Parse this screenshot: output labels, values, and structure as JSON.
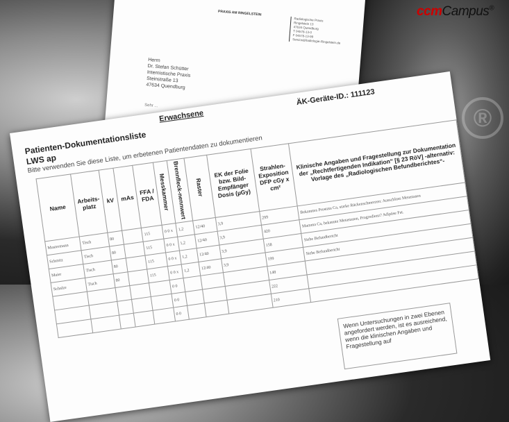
{
  "logo": {
    "text_a": "ccm",
    "text_b": "Campus",
    "reg": "®"
  },
  "watermark": "®",
  "letter": {
    "header": "PRAXIS AM RINGELSTEIN",
    "sender": [
      "Radiologische Praxis",
      "Ringelstein 13",
      "47634 Quendburg",
      "",
      "T 04578-13-0",
      "F 04578-13-99",
      "Service&Radiologie-Ringelstein.de"
    ],
    "recipient": [
      "Herrn",
      "Dr. Stefan Schütter",
      "Internistische Praxis",
      "Steinstraße 13",
      "47634 Quendburg"
    ],
    "greeting": "Sehr ..."
  },
  "sheet": {
    "category": "Erwachsene",
    "title": "Patienten-Dokumentationsliste",
    "subtitle": "LWS ap",
    "hint": "Bitte verwenden Sie diese Liste, um erbetenen Patientendaten zu dokumentieren",
    "device_id": "ÄK-Geräte-ID.: 111123",
    "columns": [
      "Name",
      "Arbeits-platz",
      "kV",
      "mAs",
      "FFA / FDA",
      "Messkammer",
      "Brennfleck-nennwert",
      "Raster",
      "EK der Folie bzw. Bild-Empfänger Dosis (µGy)",
      "Strahlen-Exposition DFP cGy x cm²",
      "Klinische Angaben und Fragestellung zur Dokumentation der „Rechtfertigenden Indikation“ [§ 23 RöV] -alternativ: Vorlage des „Radiologischen Befundberichtes“-"
    ],
    "rows": [
      [
        "Mustermann",
        "Tisch",
        "80",
        "",
        "115",
        "0 0 x",
        "1,2",
        "12/40",
        "3,9",
        "299",
        "Bekanntes Prostata Ca, starke Rückenschmerzen: Ausschluss Metastasen"
      ],
      [
        "Schmitz",
        "Tisch",
        "80",
        "",
        "115",
        "0 0 x",
        "1,2",
        "12/40",
        "3,9",
        "420",
        "Mamma Ca, bekannte Metastasen, Progredienz? Adipöse Pat."
      ],
      [
        "Maier",
        "Tisch",
        "80",
        "",
        "115",
        "0 0 x",
        "1,2",
        "12/40",
        "3,9",
        "158",
        "Siehe Befundbericht"
      ],
      [
        "Schulze",
        "Tisch",
        "80",
        "",
        "115",
        "0 0 x",
        "1,2",
        "12/40",
        "3,9",
        "199",
        "Siehe Befundbericht"
      ],
      [
        "",
        "",
        "",
        "",
        "",
        "0 0",
        "",
        "",
        "",
        "148",
        ""
      ],
      [
        "",
        "",
        "",
        "",
        "",
        "0 0",
        "",
        "",
        "",
        "222",
        ""
      ],
      [
        "",
        "",
        "",
        "",
        "",
        "0 0",
        "",
        "",
        "",
        "210",
        ""
      ]
    ],
    "note": "Wenn Untersuchungen in zwei Ebenen angefordert werden, ist es ausreichend, wenn die klinischen Angaben und Fragestellung auf"
  }
}
